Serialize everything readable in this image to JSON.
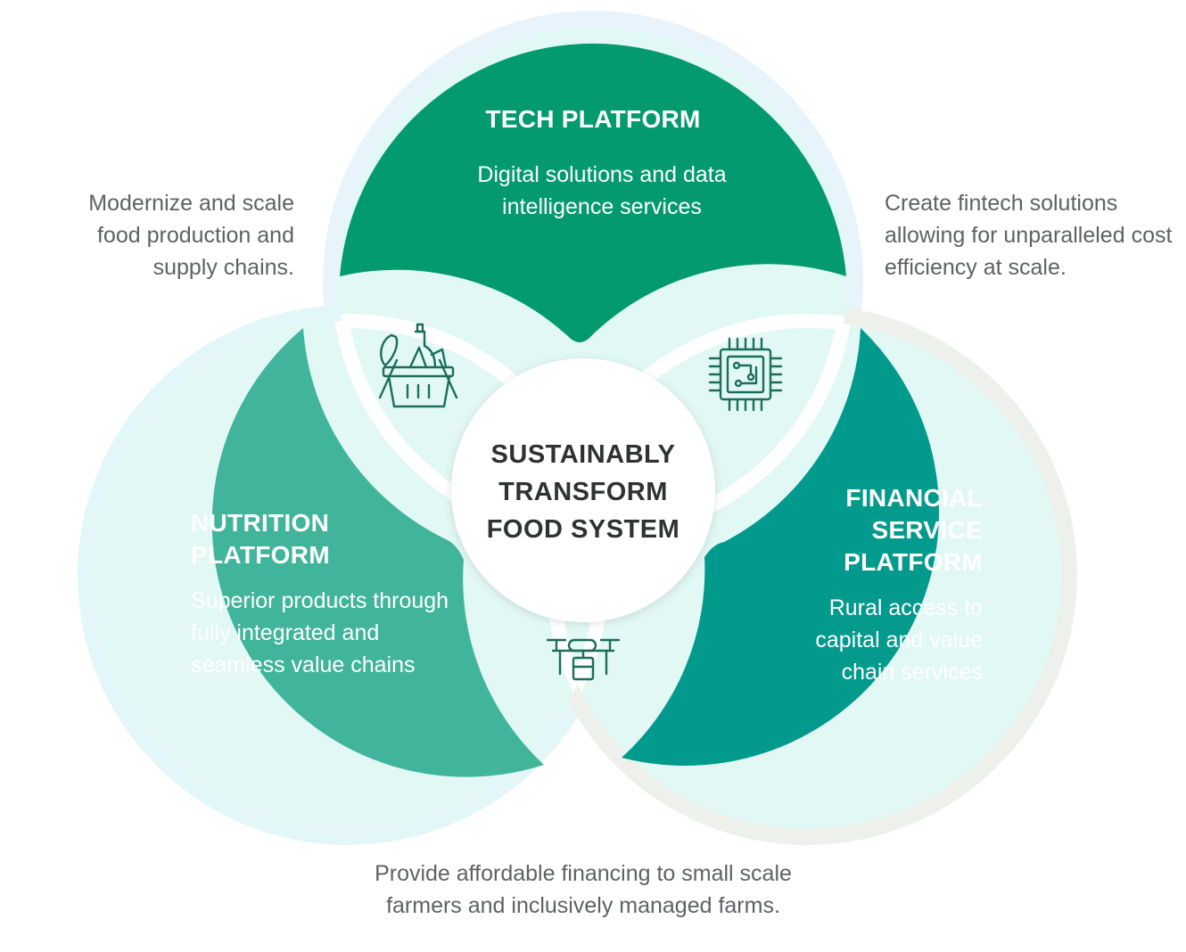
{
  "colors": {
    "tech": "#039a70",
    "nutrition": "#41b59b",
    "financial": "#039a8e",
    "lens": "#e2f8f5",
    "icon": "#1b6e5c"
  },
  "center": {
    "title": "SUSTAINABLY TRANSFORM FOOD SYSTEM"
  },
  "tech": {
    "title": "TECH PLATFORM",
    "description": "Digital solutions and data intelligence services"
  },
  "nutrition": {
    "title": "NUTRITION PLATFORM",
    "description": "Superior products through fully integrated and seamless value chains"
  },
  "financial": {
    "title": "FINANCIAL SERVICE PLATFORM",
    "description": "Rural access to capital and value chain services"
  },
  "notes": {
    "top_left": "Modernize and scale food production and supply chains.",
    "top_right": "Create fintech solutions allowing for unparalleled cost efficiency at scale.",
    "bottom": "Provide affordable financing to small scale farmers and inclusively managed farms."
  },
  "icons": {
    "basket": "grocery-basket",
    "chip": "microchip",
    "drone": "delivery-drone"
  }
}
